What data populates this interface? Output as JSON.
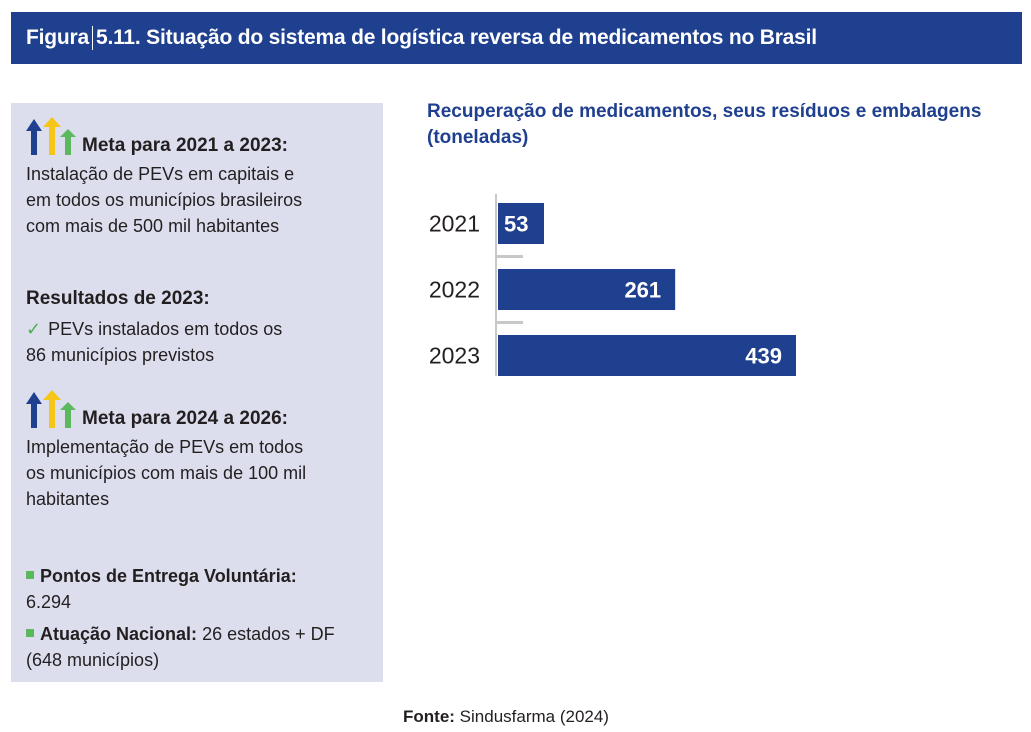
{
  "header": {
    "figure_label": "Figura",
    "title": "5.11. Situação do sistema de logística reversa de medicamentos no Brasil"
  },
  "panel": {
    "meta1": {
      "title": "Meta para 2021 a 2023:",
      "lines": [
        "Instalação de PEVs em capitais e",
        "em todos os municípios brasileiros",
        "com mais de 500 mil habitantes"
      ]
    },
    "results": {
      "title": "Resultados de 2023:",
      "check": "✓",
      "lines": [
        "PEVs instalados em todos os",
        "86 municípios previstos"
      ]
    },
    "meta2": {
      "title": "Meta para 2024 a 2026:",
      "lines": [
        "Implementação de PEVs em todos",
        "os municípios com mais de 100 mil",
        "habitantes"
      ]
    },
    "stats": {
      "pev_label": "Pontos de Entrega Voluntária:",
      "pev_value": "6.294",
      "nat_label": "Atuação Nacional:",
      "nat_value": "26 estados + DF",
      "nat_value2": "(648 municípios)"
    },
    "arrow_colors": {
      "blue": "#1f3f8f",
      "yellow": "#f5c518",
      "green": "#5cb85c"
    }
  },
  "chart_data": {
    "type": "bar",
    "orientation": "horizontal",
    "title": "Recuperação de medicamentos, seus resíduos e embalagens (toneladas)",
    "title_lines": [
      "Recuperação de medicamentos, seus resíduos e embalagens",
      "(toneladas)"
    ],
    "categories": [
      "2021",
      "2022",
      "2023"
    ],
    "values": [
      53,
      261,
      439
    ],
    "xlabel": "",
    "ylabel": "",
    "xlim": [
      0,
      439
    ],
    "bar_color": "#1f3f8f",
    "grid": false
  },
  "source": {
    "label": "Fonte:",
    "text": "Sindusfarma (2024)"
  }
}
